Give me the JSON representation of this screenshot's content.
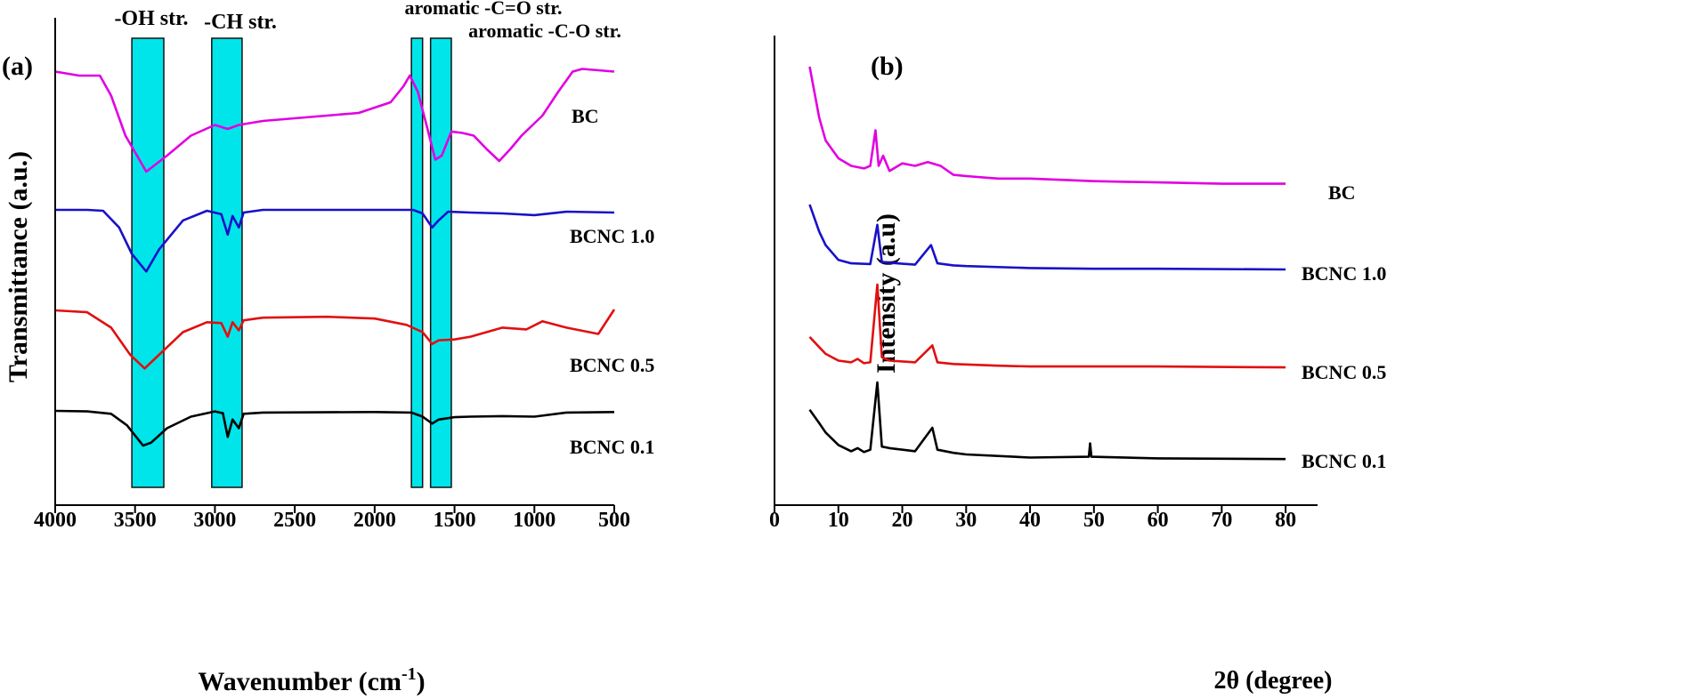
{
  "chart_data": [
    {
      "panel": "(a)",
      "type": "line",
      "xlabel": "Wavenumber (cm",
      "xlabel_sup": "-1",
      "xlabel_close": ")",
      "ylabel": "Transmittance (a.u.)",
      "xlim": [
        4000,
        500
      ],
      "x_ticks": [
        4000,
        3500,
        3000,
        2500,
        2000,
        1500,
        1000,
        500
      ],
      "band_labels": [
        "-OH str.",
        "-CH str.",
        "aromatic -C=O str.",
        "aromatic -C-O str."
      ],
      "bands": [
        [
          3520,
          3320
        ],
        [
          3020,
          2830
        ],
        [
          1770,
          1700
        ],
        [
          1650,
          1520
        ]
      ],
      "series": [
        {
          "name": "BC",
          "color": "#e100e1",
          "points": [
            [
              4000,
              0.93
            ],
            [
              3850,
              0.9
            ],
            [
              3720,
              0.9
            ],
            [
              3650,
              0.75
            ],
            [
              3560,
              0.45
            ],
            [
              3430,
              0.18
            ],
            [
              3300,
              0.3
            ],
            [
              3150,
              0.45
            ],
            [
              3000,
              0.53
            ],
            [
              2920,
              0.5
            ],
            [
              2850,
              0.53
            ],
            [
              2700,
              0.56
            ],
            [
              2500,
              0.58
            ],
            [
              2300,
              0.6
            ],
            [
              2100,
              0.62
            ],
            [
              1900,
              0.7
            ],
            [
              1820,
              0.82
            ],
            [
              1780,
              0.9
            ],
            [
              1730,
              0.78
            ],
            [
              1680,
              0.55
            ],
            [
              1620,
              0.27
            ],
            [
              1580,
              0.3
            ],
            [
              1520,
              0.48
            ],
            [
              1450,
              0.47
            ],
            [
              1380,
              0.45
            ],
            [
              1300,
              0.35
            ],
            [
              1220,
              0.26
            ],
            [
              1150,
              0.35
            ],
            [
              1080,
              0.45
            ],
            [
              950,
              0.6
            ],
            [
              850,
              0.78
            ],
            [
              760,
              0.93
            ],
            [
              700,
              0.95
            ],
            [
              500,
              0.93
            ]
          ]
        },
        {
          "name": "BCNC 1.0",
          "color": "#1a10c8",
          "points": [
            [
              4000,
              1.0
            ],
            [
              3800,
              1.0
            ],
            [
              3700,
              0.99
            ],
            [
              3600,
              0.8
            ],
            [
              3520,
              0.5
            ],
            [
              3430,
              0.3
            ],
            [
              3350,
              0.55
            ],
            [
              3200,
              0.88
            ],
            [
              3050,
              0.99
            ],
            [
              2960,
              0.95
            ],
            [
              2920,
              0.72
            ],
            [
              2890,
              0.93
            ],
            [
              2850,
              0.8
            ],
            [
              2820,
              0.97
            ],
            [
              2700,
              1.0
            ],
            [
              2000,
              1.0
            ],
            [
              1760,
              1.0
            ],
            [
              1700,
              0.96
            ],
            [
              1640,
              0.8
            ],
            [
              1600,
              0.88
            ],
            [
              1540,
              0.98
            ],
            [
              1400,
              0.97
            ],
            [
              1200,
              0.96
            ],
            [
              1000,
              0.94
            ],
            [
              800,
              0.98
            ],
            [
              500,
              0.97
            ]
          ]
        },
        {
          "name": "BCNC 0.5",
          "color": "#e01010",
          "points": [
            [
              4000,
              0.99
            ],
            [
              3800,
              0.97
            ],
            [
              3650,
              0.8
            ],
            [
              3530,
              0.5
            ],
            [
              3440,
              0.35
            ],
            [
              3350,
              0.5
            ],
            [
              3200,
              0.75
            ],
            [
              3050,
              0.86
            ],
            [
              2960,
              0.85
            ],
            [
              2920,
              0.7
            ],
            [
              2890,
              0.86
            ],
            [
              2850,
              0.77
            ],
            [
              2820,
              0.88
            ],
            [
              2700,
              0.91
            ],
            [
              2300,
              0.92
            ],
            [
              2000,
              0.9
            ],
            [
              1800,
              0.83
            ],
            [
              1700,
              0.75
            ],
            [
              1640,
              0.62
            ],
            [
              1600,
              0.66
            ],
            [
              1500,
              0.67
            ],
            [
              1400,
              0.7
            ],
            [
              1200,
              0.8
            ],
            [
              1050,
              0.78
            ],
            [
              950,
              0.87
            ],
            [
              800,
              0.8
            ],
            [
              600,
              0.73
            ],
            [
              500,
              1.0
            ]
          ]
        },
        {
          "name": "BCNC 0.1",
          "color": "#000000",
          "points": [
            [
              4000,
              1.0
            ],
            [
              3800,
              0.99
            ],
            [
              3650,
              0.95
            ],
            [
              3550,
              0.75
            ],
            [
              3450,
              0.4
            ],
            [
              3400,
              0.45
            ],
            [
              3300,
              0.7
            ],
            [
              3150,
              0.9
            ],
            [
              3000,
              0.99
            ],
            [
              2950,
              0.96
            ],
            [
              2920,
              0.55
            ],
            [
              2890,
              0.85
            ],
            [
              2850,
              0.7
            ],
            [
              2820,
              0.95
            ],
            [
              2700,
              0.97
            ],
            [
              2000,
              0.98
            ],
            [
              1770,
              0.97
            ],
            [
              1700,
              0.9
            ],
            [
              1640,
              0.78
            ],
            [
              1600,
              0.85
            ],
            [
              1500,
              0.89
            ],
            [
              1400,
              0.9
            ],
            [
              1200,
              0.91
            ],
            [
              1000,
              0.9
            ],
            [
              800,
              0.97
            ],
            [
              500,
              0.98
            ]
          ]
        }
      ]
    },
    {
      "panel": "(b)",
      "type": "line",
      "xlabel": "2θ (degree)",
      "ylabel": "Intensity (a.u)",
      "xlim": [
        0,
        85
      ],
      "x_ticks": [
        0,
        10,
        20,
        30,
        40,
        50,
        60,
        70,
        80
      ],
      "series": [
        {
          "name": "BC",
          "color": "#e100e1",
          "points": [
            [
              5.5,
              1.0
            ],
            [
              7,
              0.6
            ],
            [
              8,
              0.42
            ],
            [
              10,
              0.28
            ],
            [
              12,
              0.22
            ],
            [
              14,
              0.2
            ],
            [
              15,
              0.22
            ],
            [
              15.8,
              0.5
            ],
            [
              16.3,
              0.22
            ],
            [
              17,
              0.3
            ],
            [
              18,
              0.18
            ],
            [
              20,
              0.24
            ],
            [
              22,
              0.22
            ],
            [
              24,
              0.25
            ],
            [
              26,
              0.22
            ],
            [
              28,
              0.15
            ],
            [
              30,
              0.14
            ],
            [
              35,
              0.12
            ],
            [
              40,
              0.12
            ],
            [
              50,
              0.1
            ],
            [
              60,
              0.09
            ],
            [
              70,
              0.08
            ],
            [
              80,
              0.08
            ]
          ]
        },
        {
          "name": "BCNC 1.0",
          "color": "#1a10c8",
          "points": [
            [
              5.5,
              1.0
            ],
            [
              7,
              0.6
            ],
            [
              8,
              0.4
            ],
            [
              10,
              0.18
            ],
            [
              12,
              0.13
            ],
            [
              15,
              0.12
            ],
            [
              16.1,
              0.7
            ],
            [
              16.8,
              0.15
            ],
            [
              18,
              0.14
            ],
            [
              22,
              0.11
            ],
            [
              24.5,
              0.4
            ],
            [
              25.5,
              0.13
            ],
            [
              28,
              0.1
            ],
            [
              30,
              0.09
            ],
            [
              40,
              0.06
            ],
            [
              50,
              0.05
            ],
            [
              60,
              0.05
            ],
            [
              80,
              0.04
            ]
          ]
        },
        {
          "name": "BCNC 0.5",
          "color": "#e01010",
          "points": [
            [
              5.5,
              0.38
            ],
            [
              7,
              0.26
            ],
            [
              8,
              0.18
            ],
            [
              10,
              0.1
            ],
            [
              12,
              0.08
            ],
            [
              13,
              0.12
            ],
            [
              14,
              0.07
            ],
            [
              15,
              0.08
            ],
            [
              16.1,
              1.0
            ],
            [
              16.8,
              0.14
            ],
            [
              18,
              0.1
            ],
            [
              22,
              0.08
            ],
            [
              24.7,
              0.28
            ],
            [
              25.5,
              0.08
            ],
            [
              28,
              0.06
            ],
            [
              35,
              0.04
            ],
            [
              40,
              0.03
            ],
            [
              60,
              0.03
            ],
            [
              80,
              0.02
            ]
          ]
        },
        {
          "name": "BCNC 0.1",
          "color": "#000000",
          "points": [
            [
              5.5,
              0.65
            ],
            [
              7,
              0.48
            ],
            [
              8,
              0.36
            ],
            [
              10,
              0.2
            ],
            [
              12,
              0.12
            ],
            [
              13,
              0.16
            ],
            [
              14,
              0.11
            ],
            [
              15,
              0.14
            ],
            [
              16.1,
              1.0
            ],
            [
              16.8,
              0.18
            ],
            [
              18,
              0.16
            ],
            [
              22,
              0.12
            ],
            [
              24.7,
              0.42
            ],
            [
              25.5,
              0.14
            ],
            [
              28,
              0.1
            ],
            [
              30,
              0.08
            ],
            [
              40,
              0.04
            ],
            [
              49.2,
              0.05
            ],
            [
              49.4,
              0.22
            ],
            [
              49.6,
              0.05
            ],
            [
              60,
              0.03
            ],
            [
              80,
              0.02
            ]
          ]
        }
      ]
    }
  ]
}
